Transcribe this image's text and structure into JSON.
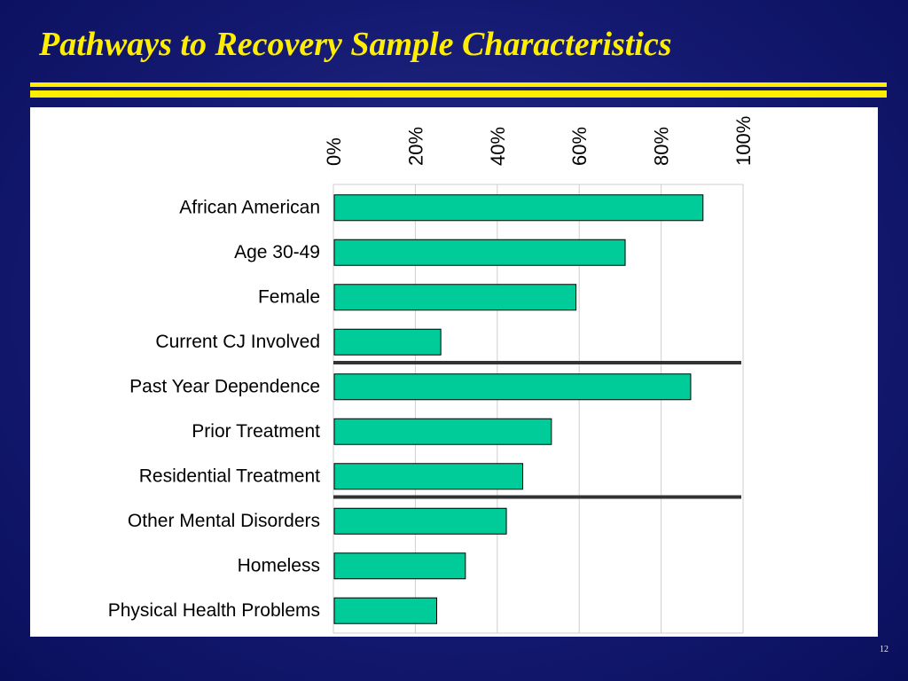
{
  "slide": {
    "title": "Pathways to Recovery Sample Characteristics",
    "page_number": "12",
    "colors": {
      "background": "#151a72",
      "title": "#ffee00",
      "bar": "#00cc99",
      "divider": "#333333"
    }
  },
  "chart_data": {
    "type": "bar",
    "orientation": "horizontal",
    "categories": [
      "African American",
      "Age 30-49",
      "Female",
      "Current CJ Involved",
      "Past Year Dependence",
      "Prior Treatment",
      "Residential Treatment",
      "Other Mental Disorders",
      "Homeless",
      "Physical Health Problems"
    ],
    "values": [
      90,
      71,
      59,
      26,
      87,
      53,
      46,
      42,
      32,
      25
    ],
    "unit": "%",
    "xlim": [
      0,
      100
    ],
    "x_ticks": [
      "0%",
      "20%",
      "40%",
      "60%",
      "80%",
      "100%"
    ],
    "x_tick_values": [
      0,
      20,
      40,
      60,
      80,
      100
    ],
    "tick_label_position": "top",
    "group_dividers_after_index": [
      3,
      6
    ],
    "grid": true,
    "legend": "none"
  }
}
